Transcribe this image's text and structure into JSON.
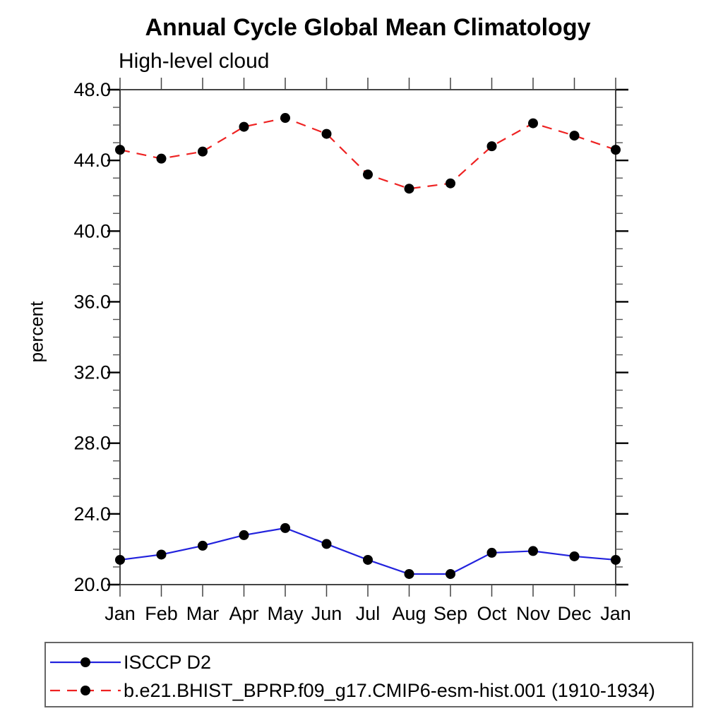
{
  "chart_data": {
    "type": "line",
    "title": "Annual Cycle Global Mean Climatology",
    "subtitle": "High-level cloud",
    "xlabel": "",
    "ylabel": "percent",
    "categories": [
      "Jan",
      "Feb",
      "Mar",
      "Apr",
      "May",
      "Jun",
      "Jul",
      "Aug",
      "Sep",
      "Oct",
      "Nov",
      "Dec",
      "Jan"
    ],
    "series": [
      {
        "name": "ISCCP D2",
        "color": "#2222dd",
        "line_style": "solid",
        "marker": "filled-circle",
        "marker_color": "#000000",
        "values": [
          21.4,
          21.7,
          22.2,
          22.8,
          23.2,
          22.3,
          21.4,
          20.6,
          20.6,
          21.8,
          21.9,
          21.6,
          21.4
        ]
      },
      {
        "name": "b.e21.BHIST_BPRP.f09_g17.CMIP6-esm-hist.001 (1910-1934)",
        "color": "#ee2222",
        "line_style": "dashed",
        "marker": "filled-circle",
        "marker_color": "#000000",
        "values": [
          44.6,
          44.1,
          44.5,
          45.9,
          46.4,
          45.5,
          43.2,
          42.4,
          42.7,
          44.8,
          46.1,
          45.4,
          44.6
        ]
      }
    ],
    "ylim": [
      20.0,
      48.0
    ],
    "yticks_major": [
      20.0,
      24.0,
      28.0,
      32.0,
      36.0,
      40.0,
      44.0,
      48.0
    ],
    "ytick_minor_step": 1.0,
    "ytick_label_decimals": 1,
    "grid": false,
    "legend_position": "bottom-left"
  }
}
